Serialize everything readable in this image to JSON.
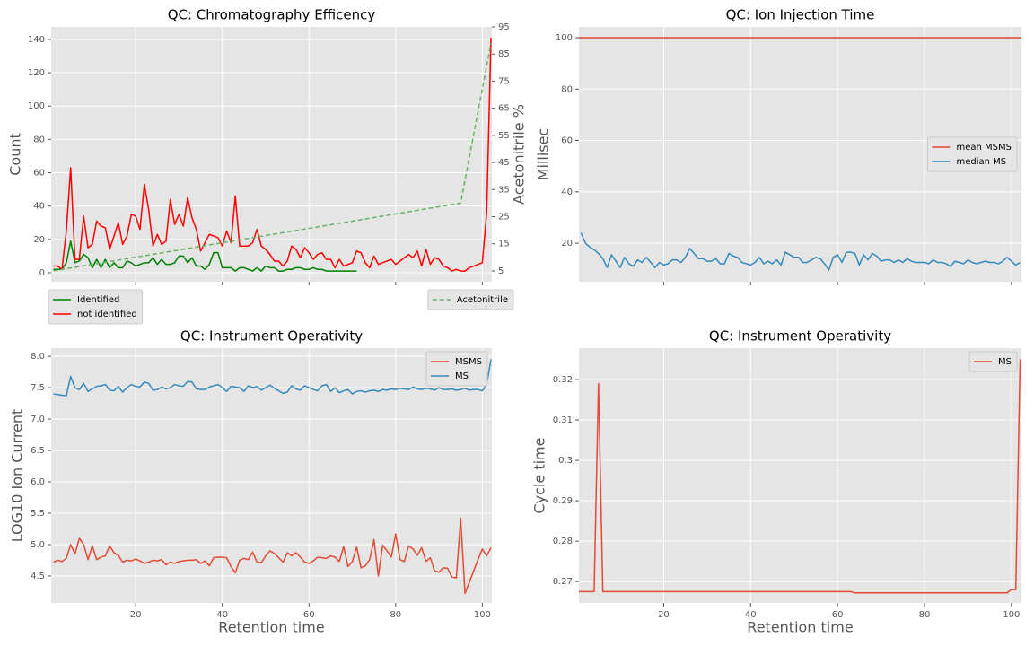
{
  "chart_data": [
    {
      "type": "line",
      "title": "QC: Chromatography Efficency",
      "ylabel": "Count",
      "y2label": "Acetonitrile %",
      "x": [
        1,
        2,
        3,
        4,
        5,
        6,
        7,
        8,
        9,
        10,
        11,
        12,
        13,
        14,
        15,
        16,
        17,
        18,
        19,
        20,
        21,
        22,
        23,
        24,
        25,
        26,
        27,
        28,
        29,
        30,
        31,
        32,
        33,
        34,
        35,
        36,
        37,
        38,
        39,
        40,
        41,
        42,
        43,
        44,
        45,
        46,
        47,
        48,
        49,
        50,
        51,
        52,
        53,
        54,
        55,
        56,
        57,
        58,
        59,
        60,
        61,
        62,
        63,
        64,
        65,
        66,
        67,
        68,
        69,
        70,
        71,
        72,
        73,
        74,
        75,
        76,
        77,
        78,
        79,
        80,
        81,
        82,
        83,
        84,
        85,
        86,
        87,
        88,
        89,
        90,
        91,
        92,
        93,
        94,
        95,
        96,
        97,
        98,
        99,
        100,
        101,
        102
      ],
      "series": [
        {
          "name": "Identified",
          "color": "#008000",
          "values": [
            2,
            2,
            2,
            6,
            19,
            6,
            7,
            11,
            9,
            3,
            8,
            3,
            8,
            3,
            6,
            3,
            3,
            7,
            6,
            4,
            5,
            6,
            6,
            9,
            5,
            8,
            5,
            5,
            6,
            10,
            10,
            6,
            9,
            4,
            4,
            2,
            5,
            12,
            12,
            3,
            3,
            3,
            1,
            3,
            3,
            2,
            1,
            3,
            1,
            4,
            3,
            3,
            1,
            1,
            2,
            2,
            3,
            3,
            2,
            2,
            3,
            2,
            2,
            1,
            1,
            1,
            1,
            1,
            1,
            1,
            1,
            null,
            null,
            null,
            null,
            null,
            null,
            null,
            null,
            null,
            null,
            null,
            null,
            null,
            null,
            null,
            null,
            null,
            null,
            null,
            null,
            null,
            null,
            null,
            null,
            null,
            null,
            null,
            null,
            null,
            null,
            null
          ]
        },
        {
          "name": "not identified",
          "color": "#ff0000",
          "values": [
            4,
            4,
            2,
            25,
            63,
            8,
            8,
            34,
            15,
            17,
            31,
            28,
            27,
            14,
            22,
            30,
            17,
            22,
            35,
            34,
            26,
            53,
            38,
            16,
            23,
            17,
            19,
            44,
            29,
            35,
            28,
            45,
            33,
            26,
            13,
            18,
            23,
            22,
            21,
            16,
            25,
            18,
            46,
            16,
            16,
            16,
            18,
            26,
            16,
            14,
            11,
            7,
            7,
            4,
            7,
            16,
            14,
            9,
            15,
            12,
            8,
            11,
            12,
            8,
            8,
            3,
            8,
            4,
            5,
            6,
            13,
            12,
            6,
            3,
            10,
            5,
            6,
            7,
            8,
            5,
            7,
            9,
            11,
            9,
            13,
            4,
            14,
            5,
            9,
            8,
            4,
            3,
            1,
            2,
            1,
            1,
            3,
            4,
            5,
            6,
            36,
            141
          ]
        },
        {
          "name": "Acetonitrile",
          "color": "#66b266",
          "linestyle": "dashed",
          "axis": "y2",
          "x": [
            1,
            95,
            102
          ],
          "values": [
            5,
            30,
            89
          ]
        }
      ],
      "xlim": [
        0.5,
        102.2
      ],
      "xticks": [
        20,
        40,
        60,
        80,
        100
      ],
      "x_tick_labels": false,
      "ylim": [
        -5.4,
        147.5
      ],
      "yticks": [
        0,
        20,
        40,
        60,
        80,
        100,
        120,
        140
      ],
      "y2lim": [
        1,
        95
      ],
      "y2ticks": [
        5,
        15,
        25,
        35,
        45,
        55,
        65,
        75,
        85,
        95
      ],
      "grid": true,
      "legend": "below"
    },
    {
      "type": "line",
      "title": "QC: Ion Injection Time",
      "ylabel": "Millisec",
      "x": [
        1,
        2,
        3,
        4,
        5,
        6,
        7,
        8,
        9,
        10,
        11,
        12,
        13,
        14,
        15,
        16,
        17,
        18,
        19,
        20,
        21,
        22,
        23,
        24,
        25,
        26,
        27,
        28,
        29,
        30,
        31,
        32,
        33,
        34,
        35,
        36,
        37,
        38,
        39,
        40,
        41,
        42,
        43,
        44,
        45,
        46,
        47,
        48,
        49,
        50,
        51,
        52,
        53,
        54,
        55,
        56,
        57,
        58,
        59,
        60,
        61,
        62,
        63,
        64,
        65,
        66,
        67,
        68,
        69,
        70,
        71,
        72,
        73,
        74,
        75,
        76,
        77,
        78,
        79,
        80,
        81,
        82,
        83,
        84,
        85,
        86,
        87,
        88,
        89,
        90,
        91,
        92,
        93,
        94,
        95,
        96,
        97,
        98,
        99,
        100,
        101,
        102
      ],
      "series": [
        {
          "name": "mean MSMS",
          "color": "#e24a33",
          "x": [
            0.5,
            102.3
          ],
          "values": [
            100,
            100
          ]
        },
        {
          "name": "median MS",
          "color": "#348abd",
          "values": [
            24,
            20,
            18.5,
            17.5,
            16,
            14,
            10.5,
            15.5,
            13,
            10.5,
            14.5,
            12,
            11,
            13.5,
            12.5,
            14.5,
            12.5,
            10.5,
            12.5,
            11.5,
            12,
            13.5,
            13.5,
            12.5,
            14.5,
            18,
            16,
            14,
            14,
            13,
            13,
            14,
            12,
            12,
            16,
            15,
            14.5,
            12.5,
            12,
            11.5,
            12.5,
            14.5,
            12,
            13,
            12,
            13.5,
            11.5,
            16.5,
            15.5,
            14.5,
            14.5,
            12.5,
            12.5,
            13.5,
            14.5,
            14,
            12,
            9.5,
            14.5,
            15.5,
            12.5,
            16.5,
            16.5,
            16,
            11.5,
            15.5,
            13.5,
            16,
            15,
            13,
            13.5,
            13.5,
            12.5,
            13.5,
            12.5,
            14,
            13,
            12.5,
            12.5,
            12.5,
            12,
            13.5,
            12.5,
            12.5,
            12,
            11,
            13,
            12.5,
            12,
            13.5,
            12.5,
            12,
            12.5,
            13,
            12.5,
            12.5,
            12,
            13,
            14.5,
            13,
            11.5,
            12.5
          ]
        }
      ],
      "xlim": [
        0.5,
        102.3
      ],
      "xticks": [
        20,
        40,
        60,
        80,
        100
      ],
      "x_tick_labels": false,
      "ylim": [
        5,
        104.2
      ],
      "yticks": [
        20,
        40,
        60,
        80,
        100
      ],
      "grid": true,
      "legend": "center right"
    },
    {
      "type": "line",
      "title": "QC: Instrument Operativity",
      "ylabel": "LOG10 Ion Current",
      "xlabel": "Retention time",
      "x": [
        1,
        2,
        3,
        4,
        5,
        6,
        7,
        8,
        9,
        10,
        11,
        12,
        13,
        14,
        15,
        16,
        17,
        18,
        19,
        20,
        21,
        22,
        23,
        24,
        25,
        26,
        27,
        28,
        29,
        30,
        31,
        32,
        33,
        34,
        35,
        36,
        37,
        38,
        39,
        40,
        41,
        42,
        43,
        44,
        45,
        46,
        47,
        48,
        49,
        50,
        51,
        52,
        53,
        54,
        55,
        56,
        57,
        58,
        59,
        60,
        61,
        62,
        63,
        64,
        65,
        66,
        67,
        68,
        69,
        70,
        71,
        72,
        73,
        74,
        75,
        76,
        77,
        78,
        79,
        80,
        81,
        82,
        83,
        84,
        85,
        86,
        87,
        88,
        89,
        90,
        91,
        92,
        93,
        94,
        95,
        96,
        97,
        98,
        99,
        100,
        101,
        102
      ],
      "series": [
        {
          "name": "MSMS",
          "color": "#e24a33",
          "values": [
            4.72,
            4.75,
            4.73,
            4.78,
            5.0,
            4.85,
            5.1,
            5.0,
            4.76,
            4.98,
            4.76,
            4.8,
            4.82,
            4.98,
            4.87,
            4.83,
            4.72,
            4.75,
            4.74,
            4.77,
            4.74,
            4.7,
            4.72,
            4.75,
            4.74,
            4.76,
            4.68,
            4.72,
            4.7,
            4.73,
            4.74,
            4.75,
            4.75,
            4.76,
            4.7,
            4.74,
            4.66,
            4.79,
            4.8,
            4.8,
            4.79,
            4.65,
            4.55,
            4.75,
            4.78,
            4.76,
            4.88,
            4.72,
            4.71,
            4.82,
            4.9,
            4.86,
            4.79,
            4.72,
            4.87,
            4.82,
            4.87,
            4.8,
            4.72,
            4.7,
            4.74,
            4.8,
            4.79,
            4.78,
            4.82,
            4.8,
            4.73,
            4.97,
            4.65,
            4.73,
            4.96,
            4.63,
            4.66,
            4.76,
            5.08,
            4.5,
            4.99,
            4.9,
            4.8,
            5.17,
            4.76,
            4.73,
            4.98,
            4.93,
            4.83,
            4.95,
            4.73,
            4.79,
            4.58,
            4.56,
            4.63,
            4.62,
            4.48,
            4.47,
            5.42,
            4.22,
            4.4,
            4.58,
            4.76,
            4.93,
            4.82,
            4.95
          ]
        },
        {
          "name": "MS",
          "color": "#348abd",
          "values": [
            7.4,
            7.39,
            7.38,
            7.37,
            7.68,
            7.5,
            7.47,
            7.57,
            7.44,
            7.48,
            7.52,
            7.53,
            7.55,
            7.46,
            7.45,
            7.52,
            7.43,
            7.5,
            7.55,
            7.52,
            7.51,
            7.59,
            7.57,
            7.46,
            7.47,
            7.51,
            7.48,
            7.5,
            7.55,
            7.53,
            7.52,
            7.6,
            7.59,
            7.48,
            7.47,
            7.47,
            7.51,
            7.53,
            7.55,
            7.5,
            7.44,
            7.52,
            7.51,
            7.5,
            7.44,
            7.53,
            7.5,
            7.52,
            7.46,
            7.5,
            7.54,
            7.49,
            7.45,
            7.41,
            7.43,
            7.53,
            7.48,
            7.46,
            7.53,
            7.5,
            7.47,
            7.45,
            7.53,
            7.55,
            7.44,
            7.5,
            7.42,
            7.45,
            7.47,
            7.4,
            7.44,
            7.45,
            7.43,
            7.45,
            7.46,
            7.44,
            7.47,
            7.46,
            7.48,
            7.47,
            7.49,
            7.48,
            7.47,
            7.51,
            7.48,
            7.47,
            7.49,
            7.48,
            7.46,
            7.5,
            7.47,
            7.47,
            7.48,
            7.46,
            7.47,
            7.49,
            7.46,
            7.47,
            7.47,
            7.45,
            7.55,
            7.95
          ]
        }
      ],
      "xlim": [
        0.5,
        102.2
      ],
      "xticks": [
        20,
        40,
        60,
        80,
        100
      ],
      "ylim": [
        4.07,
        8.13
      ],
      "yticks": [
        4.5,
        {
          "value": 5,
          "label": "5.0"
        },
        5.5,
        {
          "value": 6,
          "label": "6.0"
        },
        6.5,
        {
          "value": 7,
          "label": "7.0"
        },
        7.5,
        {
          "value": 8,
          "label": "8.0"
        }
      ],
      "grid": true,
      "legend": "upper right"
    },
    {
      "type": "line",
      "title": "QC: Instrument Operativity",
      "ylabel": "Cycle time",
      "xlabel": "Retention time",
      "x": [
        0.5,
        4,
        5,
        6,
        63,
        64,
        99,
        100,
        101,
        102
      ],
      "series": [
        {
          "name": "MS",
          "color": "#e24a33",
          "values": [
            0.2675,
            0.2675,
            0.319,
            0.2675,
            0.2675,
            0.2672,
            0.2672,
            0.268,
            0.268,
            0.325
          ]
        }
      ],
      "xlim": [
        0.5,
        102.3
      ],
      "xticks": [
        20,
        40,
        60,
        80,
        100
      ],
      "ylim": [
        0.2647,
        0.3278
      ],
      "yticks": [
        0.27,
        0.28,
        0.29,
        0.3,
        0.31,
        0.32
      ],
      "grid": true,
      "legend": "upper right"
    }
  ]
}
